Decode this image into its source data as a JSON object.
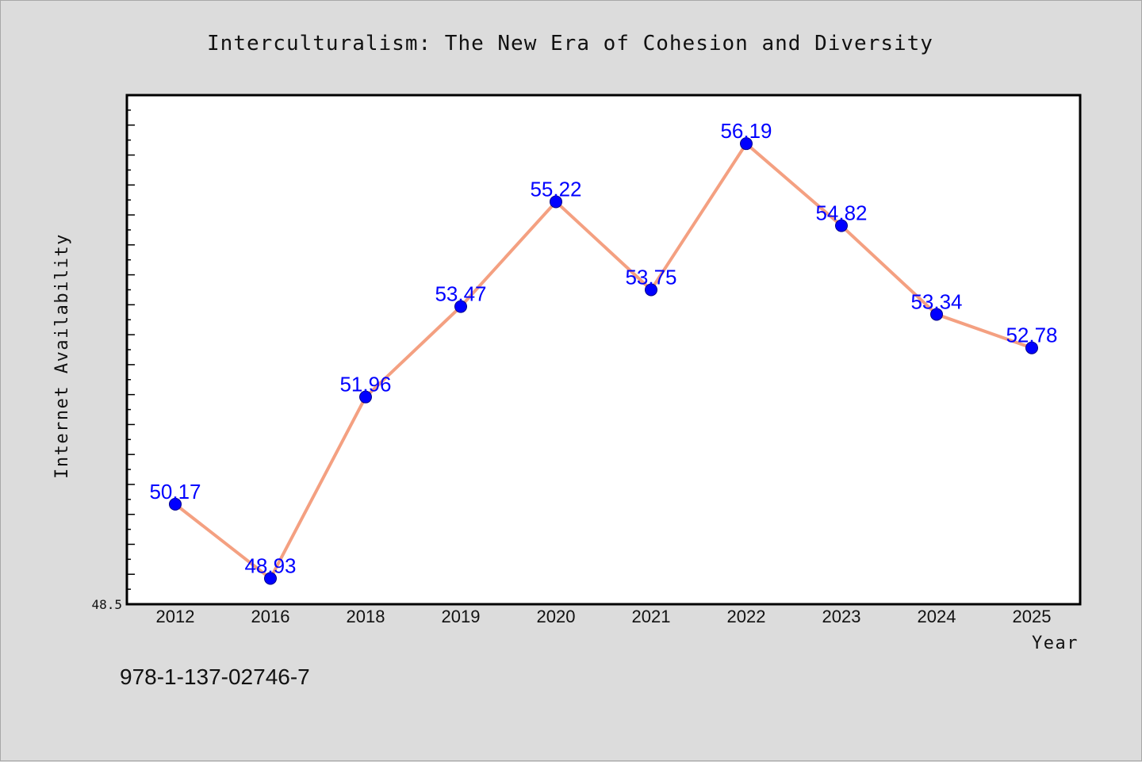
{
  "chart_data": {
    "type": "line",
    "title": "Interculturalism: The New Era of Cohesion and Diversity",
    "xlabel": "Year",
    "ylabel": "Internet Availability",
    "categories": [
      "2012",
      "2016",
      "2018",
      "2019",
      "2020",
      "2021",
      "2022",
      "2023",
      "2024",
      "2025"
    ],
    "series": [
      {
        "values": [
          50.17,
          48.93,
          51.96,
          53.47,
          55.22,
          53.75,
          56.19,
          54.82,
          53.34,
          52.78
        ],
        "labels": [
          "50.17",
          "48.93",
          "51.96",
          "53.47",
          "55.22",
          "53.75",
          "56.19",
          "54.82",
          "53.34",
          "52.78"
        ],
        "line_color": "#f4a081",
        "marker_color": "#0000ff"
      }
    ],
    "ylim": [
      48.5,
      57.0
    ],
    "yticks_labeled": [
      "48.5"
    ],
    "grid": false,
    "legend": "none"
  },
  "footer": {
    "isbn": "978-1-137-02746-7"
  }
}
